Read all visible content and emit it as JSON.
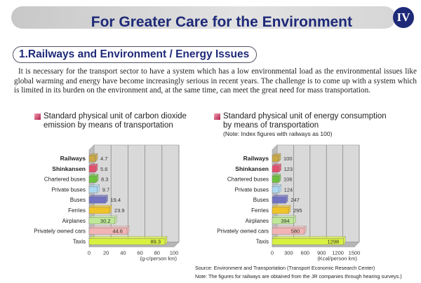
{
  "header": {
    "title": "For Greater Care for the Environment",
    "chapter_badge": "IV"
  },
  "section": {
    "heading": "1.Railways and Environment / Energy Issues"
  },
  "paragraph": "It is necessary for the transport sector to have a system which has a low environmental load as the environmental issues like global warming and energy have become increasingly serious in recent years. The challenge is to come up with a system which is limited in its burden on the environment and, at the same time, can meet the great need for mass transportation.",
  "chart_data": [
    {
      "type": "bar",
      "orientation": "horizontal",
      "title": "Standard physical unit of carbon dioxide emission by means of transportation",
      "categories": [
        "Railways",
        "Shinkansen",
        "Chartered buses",
        "Private buses",
        "Buses",
        "Ferries",
        "Airplanes",
        "Privately owned cars",
        "Taxis"
      ],
      "bold_categories": [
        "Railways",
        "Shinkansen"
      ],
      "values": [
        4.7,
        5.6,
        8.3,
        9.7,
        19.4,
        23.9,
        30.2,
        44.6,
        89.3
      ],
      "data_labels": [
        "4.7",
        "5.6",
        "8.3",
        "9.7",
        "19.4",
        "23.9",
        "30.2",
        "44.6",
        "89.3"
      ],
      "xlim": [
        0,
        100
      ],
      "xticks": [
        "0",
        "20",
        "40",
        "60",
        "80",
        "100"
      ],
      "xlabel": "(g-c/person km)",
      "grid": true,
      "colors": [
        "#c9a845",
        "#e2506e",
        "#6cc23a",
        "#acd8f0",
        "#7272c2",
        "#f0c428",
        "#bfe898",
        "#f2b4b4",
        "#d8f040"
      ]
    },
    {
      "type": "bar",
      "orientation": "horizontal",
      "title": "Standard physical unit of energy consumption by means of transportation",
      "note": "(Note: Index figures with railways as 100)",
      "categories": [
        "Railways",
        "Shinkansen",
        "Chartered buses",
        "Private buses",
        "Buses",
        "Ferries",
        "Airplanes",
        "Privately owned cars",
        "Taxis"
      ],
      "bold_categories": [
        "Railways",
        "Shinkansen"
      ],
      "values": [
        100,
        123,
        106,
        124,
        247,
        295,
        394,
        580,
        1298
      ],
      "data_labels": [
        "100",
        "123",
        "106",
        "124",
        "247",
        "295",
        "394",
        "580",
        "1298"
      ],
      "xlim": [
        0,
        1500
      ],
      "xticks": [
        "0",
        "300",
        "600",
        "900",
        "1200",
        "1500"
      ],
      "xlabel": "(Kcal/person km)",
      "grid": true,
      "colors": [
        "#c9a845",
        "#e2506e",
        "#6cc23a",
        "#acd8f0",
        "#7272c2",
        "#f0c428",
        "#bfe898",
        "#f2b4b4",
        "#d8f040"
      ]
    }
  ],
  "source": "Source: Environment and Transportation (Transport Economic Research Center)",
  "note": "Note: The figures for railways are obtained from the JR companies through hearing surveys.)"
}
